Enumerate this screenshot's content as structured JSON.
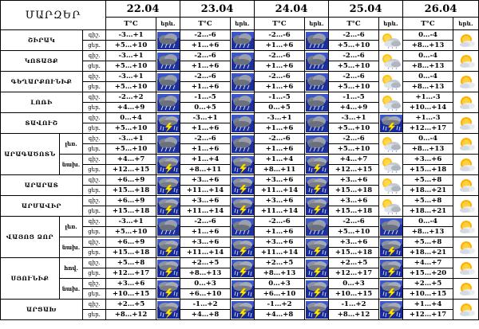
{
  "header": {
    "title": "ՄԱՐԶԵՐ",
    "t_label": "T°C",
    "ic_label": "երև.",
    "dates": [
      "22.04",
      "23.04",
      "24.04",
      "25.04",
      "26.04"
    ]
  },
  "icons": {
    "cloudy_rain": "cloud-rain-icon",
    "thunder_rain": "thunder-rain-icon",
    "partly_cloudy": "partly-cloudy-icon",
    "sun_cloud": "sun-cloud-icon"
  },
  "regions": [
    {
      "name": "ՇԻՐԱԿ",
      "rows": [
        {
          "period": "գիշ.",
          "t": [
            "-3…+1",
            "-2…-6",
            "-2…-6",
            "-2…-6",
            "0…-4"
          ]
        },
        {
          "period": "ցեր.",
          "t": [
            "+5…+10",
            "+1…+6",
            "+1…+6",
            "+5…+10",
            "+8…+13"
          ]
        }
      ],
      "icons": [
        "cloudy_rain",
        "cloudy_rain",
        "cloudy_rain",
        "partly_cloudy",
        "sun_cloud"
      ]
    },
    {
      "name": "ԿՈՏԱՅՔ",
      "rows": [
        {
          "period": "գիշ.",
          "t": [
            "-3…+1",
            "-2…-6",
            "-2…-6",
            "-2…-6",
            "0…-4"
          ]
        },
        {
          "period": "ցեր.",
          "t": [
            "+5…+10",
            "+1…+6",
            "+1…+6",
            "+5…+10",
            "+8…+13"
          ]
        }
      ],
      "icons": [
        "cloudy_rain",
        "cloudy_rain",
        "cloudy_rain",
        "partly_cloudy",
        "sun_cloud"
      ]
    },
    {
      "name": "ԳԵՂԱՐՔՈՒՆԻՔ",
      "rows": [
        {
          "period": "գիշ.",
          "t": [
            "-3…+1",
            "-2…-6",
            "-2…-6",
            "-2…-6",
            "0…-4"
          ]
        },
        {
          "period": "ցեր.",
          "t": [
            "+5…+10",
            "+1…+6",
            "+1…+6",
            "+5…+10",
            "+8…+13"
          ]
        }
      ],
      "icons": [
        "cloudy_rain",
        "cloudy_rain",
        "cloudy_rain",
        "partly_cloudy",
        "sun_cloud"
      ]
    },
    {
      "name": "ԼՈՌԻ",
      "rows": [
        {
          "period": "գիշ.",
          "t": [
            "-2…+2",
            "-1…-5",
            "-1…-5",
            "-1…-5",
            "+1…-3"
          ]
        },
        {
          "period": "ցեր.",
          "t": [
            "+4…+9",
            "0…+5",
            "0…+5",
            "+4…+9",
            "+10…+14"
          ]
        }
      ],
      "icons": [
        "cloudy_rain",
        "cloudy_rain",
        "cloudy_rain",
        "partly_cloudy",
        "sun_cloud"
      ]
    },
    {
      "name": "ՏԱՎՈՒՇ",
      "rows": [
        {
          "period": "գիշ.",
          "t": [
            "0…+4",
            "-3…+1",
            "-3…+1",
            "-3…+1",
            "+1…-3"
          ]
        },
        {
          "period": "ցեր.",
          "t": [
            "+5…+10",
            "+1…+6",
            "+1…+6",
            "+5…+10",
            "+12…+17"
          ]
        }
      ],
      "icons": [
        "thunder_rain",
        "cloudy_rain",
        "cloudy_rain",
        "thunder_rain",
        "sun_cloud"
      ]
    },
    {
      "name": "ԱՐԱԳԱԾՈՏՆ",
      "subs": [
        {
          "label": "լեռ.",
          "rows": [
            {
              "period": "գիշ.",
              "t": [
                "-3…+1",
                "-2…-6",
                "-2…-6",
                "-2…-6",
                "0…-4"
              ]
            },
            {
              "period": "ցեր.",
              "t": [
                "+5…+10",
                "+1…+6",
                "+1…+6",
                "+5…+10",
                "+8…+13"
              ]
            }
          ],
          "icons": [
            "cloudy_rain",
            "cloudy_rain",
            "cloudy_rain",
            "partly_cloudy",
            "sun_cloud"
          ]
        },
        {
          "label": "նախ.",
          "rows": [
            {
              "period": "գիշ.",
              "t": [
                "+4…+7",
                "+1…+4",
                "+1…+4",
                "+4…+7",
                "+3…+6"
              ]
            },
            {
              "period": "ցեր.",
              "t": [
                "+12…+15",
                "+8…+11",
                "+8…+11",
                "+12…+15",
                "+15…+18"
              ]
            }
          ],
          "icons": [
            "thunder_rain",
            "thunder_rain",
            "thunder_rain",
            "partly_cloudy",
            "sun_cloud"
          ]
        }
      ]
    },
    {
      "name": "ԱՐԱՐԱՏ",
      "rows": [
        {
          "period": "գիշ.",
          "t": [
            "+6…+9",
            "+3…+6",
            "+3…+6",
            "+3…+6",
            "+5…+8"
          ]
        },
        {
          "period": "ցեր.",
          "t": [
            "+15…+18",
            "+11…+14",
            "+11…+14",
            "+15…+18",
            "+18…+21"
          ]
        }
      ],
      "icons": [
        "thunder_rain",
        "thunder_rain",
        "thunder_rain",
        "partly_cloudy",
        "sun_cloud"
      ]
    },
    {
      "name": "ԱՐՄԱՎԻՐ",
      "rows": [
        {
          "period": "գիշ.",
          "t": [
            "+6…+9",
            "+3…+6",
            "+3…+6",
            "+3…+6",
            "+5…+8"
          ]
        },
        {
          "period": "ցեր.",
          "t": [
            "+15…+18",
            "+11…+14",
            "+11…+14",
            "+15…+18",
            "+18…+21"
          ]
        }
      ],
      "icons": [
        "thunder_rain",
        "thunder_rain",
        "thunder_rain",
        "partly_cloudy",
        "sun_cloud"
      ]
    },
    {
      "name": "ՎԱՅՈՑ ՁՈՐ",
      "subs": [
        {
          "label": "լեռ.",
          "rows": [
            {
              "period": "գիշ.",
              "t": [
                "-3…+1",
                "-2…-6",
                "-2…-6",
                "-2…-6",
                "0…-4"
              ]
            },
            {
              "period": "ցեր.",
              "t": [
                "+5…+10",
                "+1…+6",
                "+1…+6",
                "+5…+10",
                "+8…+13"
              ]
            }
          ],
          "icons": [
            "cloudy_rain",
            "cloudy_rain",
            "cloudy_rain",
            "cloudy_rain",
            "sun_cloud"
          ]
        },
        {
          "label": "նախ.",
          "rows": [
            {
              "period": "գիշ.",
              "t": [
                "+6…+9",
                "+3…+6",
                "+3…+6",
                "+3…+6",
                "+5…+8"
              ]
            },
            {
              "period": "ցեր.",
              "t": [
                "+15…+18",
                "+11…+14",
                "+11…+14",
                "+15…+18",
                "+18…+21"
              ]
            }
          ],
          "icons": [
            "thunder_rain",
            "thunder_rain",
            "thunder_rain",
            "thunder_rain",
            "sun_cloud"
          ]
        }
      ]
    },
    {
      "name": "ՍՅՈՒՆԻՔ",
      "subs": [
        {
          "label": "հով.",
          "rows": [
            {
              "period": "գիշ.",
              "t": [
                "+5…+8",
                "+2…+5",
                "+2…+5",
                "+2…+5",
                "+4…+7"
              ]
            },
            {
              "period": "ցեր.",
              "t": [
                "+12…+17",
                "+8…+13",
                "+8…+13",
                "+12…+17",
                "+15…+20"
              ]
            }
          ],
          "icons": [
            "thunder_rain",
            "thunder_rain",
            "thunder_rain",
            "thunder_rain",
            "sun_cloud"
          ]
        },
        {
          "label": "նախ.",
          "rows": [
            {
              "period": "գիշ.",
              "t": [
                "+3…+6",
                "0…+3",
                "0…+3",
                "0…+3",
                "+2…+5"
              ]
            },
            {
              "period": "ցեր.",
              "t": [
                "+10…+15",
                "+6…+10",
                "+6…+10",
                "+10…+15",
                "+10…+15"
              ]
            }
          ],
          "icons": [
            "thunder_rain",
            "thunder_rain",
            "thunder_rain",
            "thunder_rain",
            "sun_cloud"
          ]
        }
      ]
    },
    {
      "name": "ԱՐՑԱԽ",
      "rows": [
        {
          "period": "գիշ.",
          "t": [
            "+2…+5",
            "-1…+2",
            "-1…+2",
            "-1…+2",
            "+1…+4"
          ]
        },
        {
          "period": "ցեր.",
          "t": [
            "+8…+12",
            "+4…+8",
            "+4…+8",
            "+8…+12",
            "+12…+17"
          ]
        }
      ],
      "icons": [
        "thunder_rain",
        "thunder_rain",
        "thunder_rain",
        "thunder_rain",
        "sun_cloud"
      ]
    }
  ]
}
